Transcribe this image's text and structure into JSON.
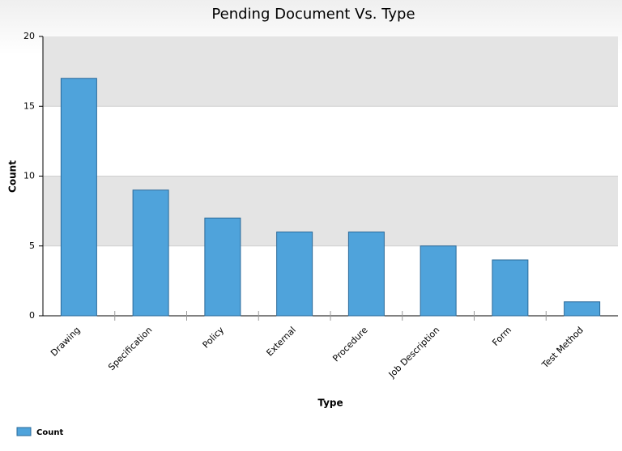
{
  "chart_data": {
    "type": "bar",
    "title": "Pending Document Vs. Type",
    "x_label": "Type",
    "y_label": "Count",
    "categories": [
      "Drawing",
      "Specification",
      "Policy",
      "External",
      "Procedure",
      "Job Description",
      "Form",
      "Test Method"
    ],
    "series": [
      {
        "name": "Count",
        "color": "#4fa3db",
        "values": [
          17,
          9,
          7,
          6,
          6,
          5,
          4,
          1
        ]
      }
    ],
    "ylim": [
      0,
      20
    ],
    "yticks": [
      0,
      5,
      10,
      15,
      20
    ],
    "grid": true
  }
}
